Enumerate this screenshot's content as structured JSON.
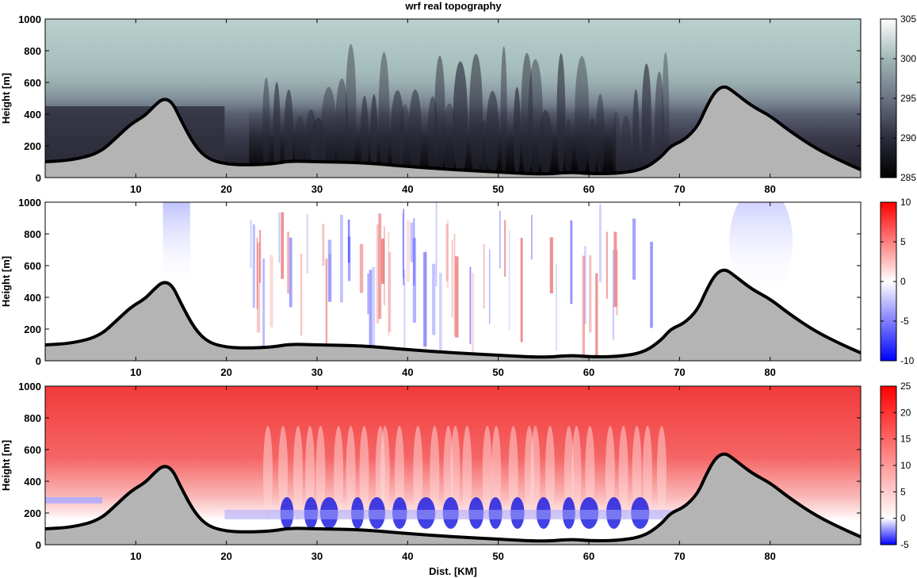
{
  "title": "wrf real topography",
  "chart_data": [
    {
      "type": "heatmap",
      "panel": "top",
      "ylabel": "Height [m]",
      "xlabel": "",
      "xlim": [
        0,
        90
      ],
      "ylim": [
        0,
        1000
      ],
      "x_ticks": [
        10,
        20,
        30,
        40,
        50,
        60,
        70,
        80
      ],
      "y_ticks": [
        0,
        200,
        400,
        600,
        800,
        1000
      ],
      "colorbar": {
        "min": 285,
        "max": 305,
        "ticks": [
          285,
          290,
          295,
          300,
          305
        ],
        "colors": [
          "#000000",
          "#2c2c3c",
          "#6c7384",
          "#9fb7b5",
          "#ffffff"
        ]
      }
    },
    {
      "type": "heatmap",
      "panel": "middle",
      "ylabel": "Height [m]",
      "xlabel": "",
      "xlim": [
        0,
        90
      ],
      "ylim": [
        0,
        1000
      ],
      "x_ticks": [
        10,
        20,
        30,
        40,
        50,
        60,
        70,
        80
      ],
      "y_ticks": [
        0,
        200,
        400,
        600,
        800,
        1000
      ],
      "colorbar": {
        "min": -10,
        "max": 10,
        "ticks": [
          -10,
          -5,
          0,
          5,
          10
        ],
        "colors": [
          "#0000ff",
          "#ffffff",
          "#ff0000"
        ]
      }
    },
    {
      "type": "heatmap",
      "panel": "bottom",
      "ylabel": "Height [m]",
      "xlabel": "Dist. [KM]",
      "xlim": [
        0,
        90
      ],
      "ylim": [
        0,
        1000
      ],
      "x_ticks": [
        10,
        20,
        30,
        40,
        50,
        60,
        70,
        80
      ],
      "y_ticks": [
        0,
        200,
        400,
        600,
        800,
        1000
      ],
      "colorbar": {
        "min": -5,
        "max": 25,
        "ticks": [
          -5,
          0,
          5,
          10,
          15,
          20,
          25
        ],
        "colors": [
          "#0000ff",
          "#ffffff",
          "#ff0000"
        ]
      }
    }
  ],
  "terrain": {
    "x_km": [
      0,
      3,
      6,
      8,
      9.5,
      11,
      12,
      13,
      14,
      15,
      16.5,
      18,
      20,
      22,
      25,
      27,
      30,
      35,
      40,
      45,
      50,
      55,
      58,
      60,
      63,
      66,
      68,
      69,
      70.5,
      72,
      73,
      74,
      75,
      76,
      78,
      80,
      82,
      85,
      88,
      90
    ],
    "height_m": [
      100,
      110,
      155,
      260,
      340,
      390,
      450,
      500,
      480,
      360,
      200,
      115,
      85,
      80,
      85,
      105,
      100,
      95,
      70,
      50,
      35,
      20,
      35,
      25,
      25,
      50,
      130,
      200,
      235,
      320,
      450,
      550,
      580,
      540,
      450,
      390,
      300,
      185,
      100,
      50
    ]
  }
}
